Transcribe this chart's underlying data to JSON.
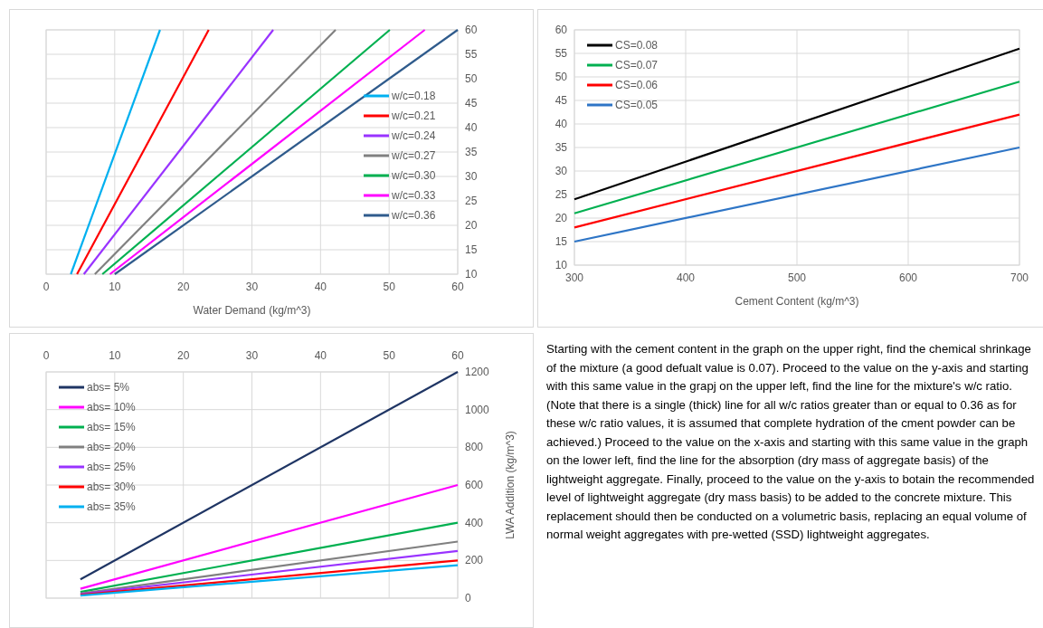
{
  "chart_data": [
    {
      "type": "line",
      "xlabel": "Water Demand (kg/m^3)",
      "xlim": [
        0,
        60
      ],
      "xticks": [
        0,
        10,
        20,
        30,
        40,
        50,
        60
      ],
      "ylim": [
        10,
        60
      ],
      "yticks": [
        10,
        15,
        20,
        25,
        30,
        35,
        40,
        45,
        50,
        55,
        60
      ],
      "grid": true,
      "legend": "right",
      "series": [
        {
          "name": "w/c=0.18",
          "color": "#00b0f0",
          "x": [
            3.6,
            16.6
          ],
          "values": [
            10,
            60
          ]
        },
        {
          "name": "w/c=0.21",
          "color": "#ff0000",
          "x": [
            4.5,
            23.7
          ],
          "values": [
            10,
            60
          ]
        },
        {
          "name": "w/c=0.24",
          "color": "#9933ff",
          "x": [
            5.5,
            33.1
          ],
          "values": [
            10,
            60
          ]
        },
        {
          "name": "w/c=0.27",
          "color": "#808080",
          "x": [
            7.1,
            42.2
          ],
          "values": [
            10,
            60
          ]
        },
        {
          "name": "w/c=0.30",
          "color": "#00b050",
          "x": [
            8.2,
            50.1
          ],
          "values": [
            10,
            60
          ]
        },
        {
          "name": "w/c=0.33",
          "color": "#ff00ff",
          "x": [
            9.3,
            55.2
          ],
          "values": [
            10,
            60
          ]
        },
        {
          "name": "w/c=0.36",
          "color": "#2f5b8c",
          "x": [
            10,
            60
          ],
          "values": [
            10,
            60
          ]
        }
      ]
    },
    {
      "type": "line",
      "xlabel": "Cement Content (kg/m^3)",
      "xlim": [
        300,
        700
      ],
      "xticks": [
        300,
        400,
        500,
        600,
        700
      ],
      "ylim": [
        10,
        60
      ],
      "yticks": [
        10,
        15,
        20,
        25,
        30,
        35,
        40,
        45,
        50,
        55,
        60
      ],
      "grid": true,
      "legend": "top left",
      "series": [
        {
          "name": "CS=0.08",
          "color": "#000000",
          "x": [
            300,
            700
          ],
          "values": [
            24,
            56
          ]
        },
        {
          "name": "CS=0.07",
          "color": "#00b050",
          "x": [
            300,
            700
          ],
          "values": [
            21,
            49
          ]
        },
        {
          "name": "CS=0.06",
          "color": "#ff0000",
          "x": [
            300,
            700
          ],
          "values": [
            18,
            42
          ]
        },
        {
          "name": "CS=0.05",
          "color": "#2e75c6",
          "x": [
            300,
            700
          ],
          "values": [
            15,
            35
          ]
        }
      ]
    },
    {
      "type": "line",
      "ylabel": "LWA Addition (kg/m^3)",
      "xlim": [
        0,
        60
      ],
      "xticks": [
        0,
        10,
        20,
        30,
        40,
        50,
        60
      ],
      "ylim": [
        0,
        1200
      ],
      "yticks": [
        0,
        200,
        400,
        600,
        800,
        1000,
        1200
      ],
      "grid": true,
      "legend": "top left",
      "series": [
        {
          "name": "abs= 5%",
          "color": "#1f3564",
          "x": [
            5,
            60
          ],
          "values": [
            100,
            1200
          ]
        },
        {
          "name": "abs= 10%",
          "color": "#ff00ff",
          "x": [
            5,
            60
          ],
          "values": [
            50,
            600
          ]
        },
        {
          "name": "abs= 15%",
          "color": "#00b050",
          "x": [
            5,
            60
          ],
          "values": [
            33,
            400
          ]
        },
        {
          "name": "abs= 20%",
          "color": "#808080",
          "x": [
            5,
            60
          ],
          "values": [
            25,
            300
          ]
        },
        {
          "name": "abs= 25%",
          "color": "#9933ff",
          "x": [
            5,
            60
          ],
          "values": [
            21,
            250
          ]
        },
        {
          "name": "abs= 30%",
          "color": "#ff0000",
          "x": [
            5,
            60
          ],
          "values": [
            17,
            200
          ]
        },
        {
          "name": "abs= 35%",
          "color": "#00b0f0",
          "x": [
            5,
            60
          ],
          "values": [
            14,
            175
          ]
        }
      ]
    },
    {
      "type": "other",
      "annotations": [
        "Starting with the cement content in the graph on the upper right, find the chemical shrinkage of the mixture (a good defualt value is 0.07). Proceed to the value on the y-axis and starting with this same value in the grapj on the upper left, find the line for the mixture's w/c ratio. (Note that there is a single (thick) line for all w/c ratios greater than or equal to 0.36 as for these w/c ratio values, it is assumed that complete hydration of the cment powder can be achieved.) Proceed to the value on the x-axis and starting with this same value in the graph on the lower left, find the line for the absorption (dry mass of aggregate basis) of the lightweight aggregate. Finally, proceed to the value on the y-axis to botain the recommended level of lightweight aggregate (dry mass basis) to be added to the concrete mixture. This replacement should then be conducted on a volumetric basis, replacing an equal volume of normal weight aggregates with pre-wetted (SSD) lightweight aggregates."
      ]
    }
  ]
}
